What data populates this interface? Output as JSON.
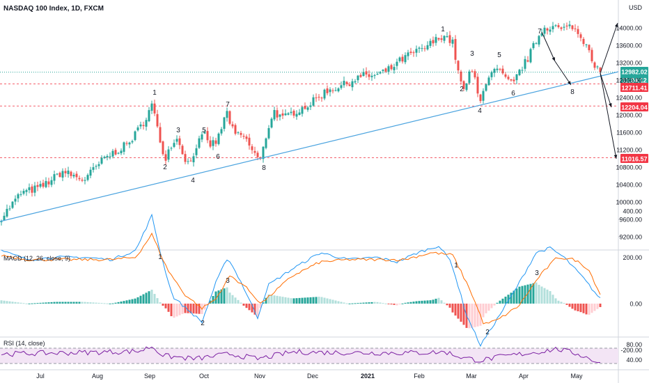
{
  "header": {
    "title": "NASDAQ 100 Index, 1D, FXCM",
    "currency": "USD"
  },
  "price_axis": {
    "ticks": [
      "14000.00",
      "13600.00",
      "13200.00",
      "12800.00",
      "12400.00",
      "12000.00",
      "11600.00",
      "11200.00",
      "10800.00",
      "10400.00",
      "10000.00",
      "9600.00",
      "9200.00"
    ],
    "tick_values": [
      14000,
      13600,
      13200,
      12800,
      12400,
      12000,
      11600,
      11200,
      10800,
      10400,
      10000,
      9600,
      9200
    ]
  },
  "badges": {
    "last_price": "12982.02",
    "countdown": "11:24:12",
    "level_1": "12711.41",
    "level_2": "12204.04",
    "level_3": "11016.57",
    "colors": {
      "last": "#26a69a",
      "level": "#f23645"
    }
  },
  "macd": {
    "label": "MACD (12, 26, close, 9)",
    "ticks": [
      "400.00",
      "200.00",
      "0.00",
      "-200.00"
    ],
    "tick_values": [
      400,
      200,
      0,
      -200
    ],
    "macd_color": "#2196f3",
    "signal_color": "#ff6d00"
  },
  "rsi": {
    "label": "RSI (14, close)",
    "ticks": [
      "80.00",
      "40.00"
    ],
    "tick_values": [
      80,
      40
    ],
    "line_color": "#7b1fa2",
    "band_color": "#f3e5f5"
  },
  "time_axis": {
    "labels": [
      "Jul",
      "Aug",
      "Sep",
      "Oct",
      "Nov",
      "Dec",
      "2021",
      "Feb",
      "Mar",
      "Apr",
      "May"
    ]
  },
  "wave_labels": {
    "price": [
      "1",
      "2",
      "3",
      "4",
      "5",
      "6",
      "7",
      "8",
      "1",
      "2",
      "3",
      "4",
      "5",
      "6",
      "7",
      "8"
    ],
    "macd": [
      "1",
      "2",
      "3",
      "1",
      "2",
      "3"
    ]
  },
  "chart_data": {
    "type": "candlestick",
    "title": "NASDAQ 100 Index, 1D, FXCM",
    "symbol": "NASDAQ 100 Index",
    "timeframe": "1D",
    "source": "FXCM",
    "x_labels": [
      "Jul",
      "Aug",
      "Sep",
      "Oct",
      "Nov",
      "Dec",
      "2021",
      "Feb",
      "Mar",
      "Apr",
      "May"
    ],
    "ylim": [
      9000,
      14300
    ],
    "price_path": [
      {
        "x": "Jun",
        "close": 9600
      },
      {
        "x": "Jul",
        "close": 10300
      },
      {
        "x": "Aug",
        "close": 11000
      },
      {
        "x": "Sep",
        "close": 12250
      },
      {
        "x": "Sep",
        "close": 11000
      },
      {
        "x": "Sep",
        "close": 11450
      },
      {
        "x": "Sep",
        "close": 10800
      },
      {
        "x": "Oct",
        "close": 11500
      },
      {
        "x": "Oct",
        "close": 11250
      },
      {
        "x": "Oct",
        "close": 12000
      },
      {
        "x": "Nov",
        "close": 11000
      },
      {
        "x": "Nov",
        "close": 12000
      },
      {
        "x": "Dec",
        "close": 12600
      },
      {
        "x": "2021",
        "close": 12900
      },
      {
        "x": "2021",
        "close": 13300
      },
      {
        "x": "Feb",
        "close": 13850
      },
      {
        "x": "Mar",
        "close": 12500
      },
      {
        "x": "Mar",
        "close": 13150
      },
      {
        "x": "Mar",
        "close": 12300
      },
      {
        "x": "Mar",
        "close": 13200
      },
      {
        "x": "Apr",
        "close": 12700
      },
      {
        "x": "Apr",
        "close": 13700
      },
      {
        "x": "Apr",
        "close": 14050
      },
      {
        "x": "May",
        "close": 13700
      },
      {
        "x": "May",
        "close": 12982
      }
    ],
    "horizontal_levels": [
      12711.41,
      12204.04,
      11016.57
    ],
    "last_price": 12982.02,
    "trendline": {
      "from": {
        "x": "Jun",
        "y": 9500
      },
      "to": {
        "x": "May",
        "y": 12950
      }
    },
    "macd": {
      "ylim": [
        -260,
        420
      ],
      "ticks": [
        400,
        200,
        0,
        -200
      ]
    },
    "rsi": {
      "ylim": [
        20,
        90
      ],
      "band": [
        30,
        70
      ],
      "ticks": [
        80,
        40
      ]
    }
  }
}
